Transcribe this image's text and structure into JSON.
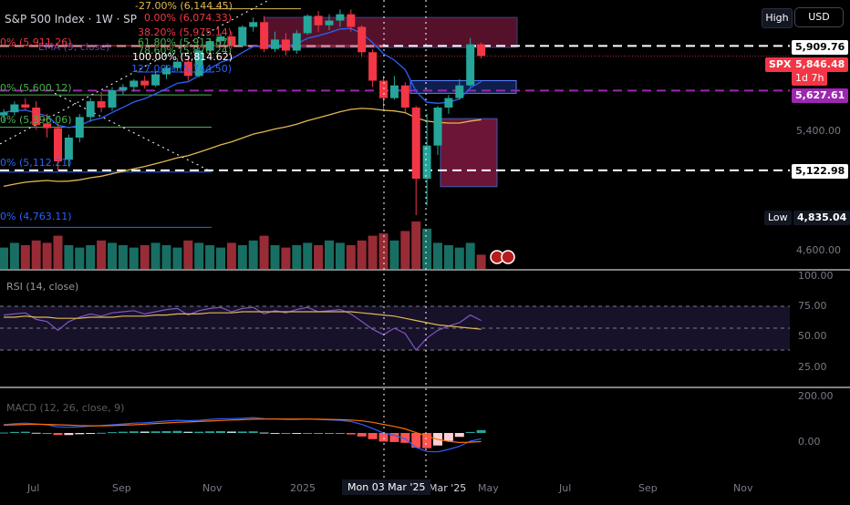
{
  "header": {
    "title": "S&P 500 Index · 1W · SP",
    "ema_label": "EMA (9, close)",
    "rsi_label": "RSI (14, close)",
    "macd_label": "MACD (12, 26, close, 9)"
  },
  "controls": {
    "high_label": "High",
    "currency_label": "USD"
  },
  "fib_levels": [
    {
      "label": "-27.00% (6,144.45)",
      "color": "#e0b850"
    },
    {
      "label": "0.00% (6,074.33)",
      "color": "#f23645"
    },
    {
      "label": "38.20% (5,975.14)",
      "color": "#f23645"
    },
    {
      "label": "61.80% (5,913.87)",
      "color": "#4caf50"
    },
    {
      "label": "78.60% (5,870.24)",
      "color": "#4caf50"
    },
    {
      "label": "100.00% (5,814.62)",
      "color": "#ffffff"
    },
    {
      "label": "127.00% (5,744.50)",
      "color": "#2962ff"
    }
  ],
  "left_levels": [
    {
      "label": "0% (5,911.26)",
      "color": "#f23645"
    },
    {
      "label": "0% (5,600.12)",
      "color": "#4caf50"
    },
    {
      "label": "0% (5,396.06)",
      "color": "#4caf50"
    },
    {
      "label": "0% (5,112.21)",
      "color": "#2962ff"
    },
    {
      "label": "0% (4,763.11)",
      "color": "#2962ff"
    }
  ],
  "price_axis": {
    "ticks": [
      "5,400.00",
      "4,600.00"
    ],
    "tags": [
      {
        "name": "high-tag",
        "text": "5,909.76",
        "bg": "#ffffff",
        "fg": "#000000"
      },
      {
        "name": "spx-tag",
        "text": "5,846.48",
        "bg": "#f23645",
        "fg": "#ffffff"
      },
      {
        "name": "countdown-tag",
        "text": "1d 7h",
        "bg": "#f23645",
        "fg": "#ffffff"
      },
      {
        "name": "purple-level-tag",
        "text": "5,627.61",
        "bg": "#9c27b0",
        "fg": "#ffffff"
      },
      {
        "name": "white-level-tag",
        "text": "5,122.98",
        "bg": "#ffffff",
        "fg": "#000000"
      },
      {
        "name": "low-value-tag",
        "text": "4,835.04",
        "bg": "#131722",
        "fg": "#ffffff"
      }
    ],
    "symbol_tag": "SPX",
    "low_label": "Low"
  },
  "rsi_axis": {
    "ticks": [
      "100.00",
      "75.00",
      "50.00",
      "25.00"
    ]
  },
  "macd_axis": {
    "ticks": [
      "200.00",
      "0.00"
    ]
  },
  "time_axis": {
    "ticks": [
      "Jul",
      "Sep",
      "Nov",
      "2025",
      "Mar '25",
      "May",
      "Jul",
      "Sep",
      "Nov"
    ],
    "cursor_label": "Mon 03 Mar '25"
  },
  "chart_data": {
    "type": "candlestick",
    "interval": "1W",
    "grid": false,
    "candles": [
      {
        "o": 5470,
        "h": 5510,
        "l": 5430,
        "c": 5490
      },
      {
        "o": 5490,
        "h": 5560,
        "l": 5470,
        "c": 5540
      },
      {
        "o": 5540,
        "h": 5580,
        "l": 5500,
        "c": 5520
      },
      {
        "o": 5520,
        "h": 5560,
        "l": 5380,
        "c": 5410
      },
      {
        "o": 5420,
        "h": 5480,
        "l": 5330,
        "c": 5390
      },
      {
        "o": 5390,
        "h": 5420,
        "l": 5120,
        "c": 5180
      },
      {
        "o": 5190,
        "h": 5350,
        "l": 5150,
        "c": 5330
      },
      {
        "o": 5330,
        "h": 5480,
        "l": 5300,
        "c": 5460
      },
      {
        "o": 5460,
        "h": 5580,
        "l": 5430,
        "c": 5560
      },
      {
        "o": 5560,
        "h": 5620,
        "l": 5490,
        "c": 5520
      },
      {
        "o": 5520,
        "h": 5650,
        "l": 5500,
        "c": 5630
      },
      {
        "o": 5630,
        "h": 5670,
        "l": 5600,
        "c": 5650
      },
      {
        "o": 5650,
        "h": 5700,
        "l": 5620,
        "c": 5690
      },
      {
        "o": 5690,
        "h": 5720,
        "l": 5640,
        "c": 5660
      },
      {
        "o": 5660,
        "h": 5750,
        "l": 5650,
        "c": 5730
      },
      {
        "o": 5730,
        "h": 5790,
        "l": 5700,
        "c": 5770
      },
      {
        "o": 5770,
        "h": 5830,
        "l": 5750,
        "c": 5810
      },
      {
        "o": 5810,
        "h": 5840,
        "l": 5690,
        "c": 5720
      },
      {
        "o": 5720,
        "h": 5900,
        "l": 5710,
        "c": 5880
      },
      {
        "o": 5880,
        "h": 5960,
        "l": 5860,
        "c": 5940
      },
      {
        "o": 5940,
        "h": 5990,
        "l": 5920,
        "c": 5970
      },
      {
        "o": 5970,
        "h": 6000,
        "l": 5890,
        "c": 5910
      },
      {
        "o": 5910,
        "h": 6040,
        "l": 5900,
        "c": 6030
      },
      {
        "o": 6030,
        "h": 6090,
        "l": 6000,
        "c": 6060
      },
      {
        "o": 6060,
        "h": 6100,
        "l": 5870,
        "c": 5890
      },
      {
        "o": 5890,
        "h": 6000,
        "l": 5870,
        "c": 5950
      },
      {
        "o": 5950,
        "h": 5990,
        "l": 5850,
        "c": 5880
      },
      {
        "o": 5880,
        "h": 6010,
        "l": 5860,
        "c": 5990
      },
      {
        "o": 5990,
        "h": 6110,
        "l": 5980,
        "c": 6100
      },
      {
        "o": 6100,
        "h": 6130,
        "l": 6000,
        "c": 6040
      },
      {
        "o": 6040,
        "h": 6110,
        "l": 6010,
        "c": 6070
      },
      {
        "o": 6070,
        "h": 6140,
        "l": 6030,
        "c": 6110
      },
      {
        "o": 6110,
        "h": 6140,
        "l": 6000,
        "c": 6030
      },
      {
        "o": 6030,
        "h": 6040,
        "l": 5840,
        "c": 5870
      },
      {
        "o": 5870,
        "h": 5890,
        "l": 5650,
        "c": 5690
      },
      {
        "o": 5690,
        "h": 5720,
        "l": 5510,
        "c": 5580
      },
      {
        "o": 5580,
        "h": 5720,
        "l": 5570,
        "c": 5660
      },
      {
        "o": 5660,
        "h": 5680,
        "l": 5490,
        "c": 5520
      },
      {
        "o": 5520,
        "h": 5530,
        "l": 4840,
        "c": 5070
      },
      {
        "o": 5070,
        "h": 5480,
        "l": 4900,
        "c": 5280
      },
      {
        "o": 5280,
        "h": 5530,
        "l": 5220,
        "c": 5520
      },
      {
        "o": 5520,
        "h": 5600,
        "l": 5480,
        "c": 5580
      },
      {
        "o": 5580,
        "h": 5700,
        "l": 5570,
        "c": 5660
      },
      {
        "o": 5660,
        "h": 5960,
        "l": 5650,
        "c": 5920
      },
      {
        "o": 5920,
        "h": 5930,
        "l": 5830,
        "c": 5846.48
      }
    ],
    "volume": [
      0.45,
      0.55,
      0.5,
      0.6,
      0.55,
      0.7,
      0.5,
      0.45,
      0.5,
      0.6,
      0.55,
      0.5,
      0.45,
      0.5,
      0.55,
      0.5,
      0.45,
      0.6,
      0.55,
      0.5,
      0.45,
      0.55,
      0.5,
      0.6,
      0.7,
      0.5,
      0.45,
      0.5,
      0.55,
      0.5,
      0.6,
      0.55,
      0.5,
      0.6,
      0.7,
      0.75,
      0.6,
      0.8,
      1.0,
      0.85,
      0.55,
      0.5,
      0.45,
      0.55,
      0.3
    ],
    "rsi": [
      62,
      63,
      64,
      58,
      56,
      48,
      56,
      60,
      63,
      61,
      64,
      65,
      66,
      63,
      65,
      67,
      68,
      62,
      66,
      68,
      69,
      65,
      68,
      69,
      63,
      66,
      64,
      67,
      69,
      65,
      66,
      67,
      63,
      56,
      49,
      44,
      50,
      45,
      30,
      41,
      48,
      52,
      55,
      62,
      57
    ],
    "rsi_ma": [
      60,
      60,
      61,
      60,
      60,
      59,
      59,
      59,
      60,
      60,
      60,
      61,
      61,
      61,
      62,
      62,
      63,
      63,
      63,
      64,
      64,
      64,
      65,
      65,
      65,
      65,
      65,
      65,
      65,
      65,
      65,
      65,
      65,
      64,
      63,
      62,
      61,
      59,
      57,
      55,
      53,
      52,
      51,
      50,
      49
    ],
    "macd": [
      40,
      45,
      48,
      44,
      40,
      30,
      28,
      30,
      34,
      36,
      40,
      44,
      48,
      50,
      54,
      58,
      62,
      60,
      62,
      66,
      70,
      70,
      72,
      75,
      70,
      68,
      66,
      66,
      68,
      66,
      64,
      62,
      56,
      42,
      22,
      0,
      -12,
      -28,
      -70,
      -90,
      -92,
      -80,
      -65,
      -40,
      -28
    ],
    "macd_signal": [
      38,
      40,
      42,
      43,
      42,
      40,
      38,
      36,
      35,
      35,
      36,
      38,
      40,
      43,
      46,
      49,
      52,
      54,
      56,
      58,
      61,
      63,
      65,
      67,
      68,
      68,
      68,
      68,
      68,
      67,
      66,
      65,
      63,
      59,
      52,
      42,
      32,
      20,
      2,
      -16,
      -31,
      -41,
      -46,
      -45,
      -42
    ],
    "ylim": [
      4500,
      6200
    ],
    "rsi_ylim": [
      0,
      100
    ],
    "macd_ylim": [
      -200,
      200
    ]
  }
}
